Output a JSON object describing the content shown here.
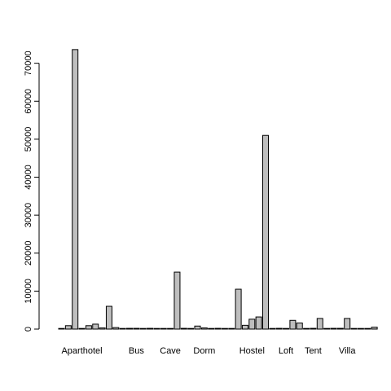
{
  "chart_data": {
    "type": "bar",
    "title": "",
    "xlabel": "",
    "ylabel": "",
    "ylim": [
      0,
      74000
    ],
    "yticks": [
      0,
      10000,
      20000,
      30000,
      40000,
      50000,
      60000,
      70000
    ],
    "ytick_labels": [
      "0",
      "10000",
      "20000",
      "30000",
      "40000",
      "50000",
      "60000",
      "70000"
    ],
    "grid": false,
    "legend": "none",
    "bar_fill": "#bebebe",
    "bar_stroke": "#000000",
    "x_labels": [
      {
        "text": "Aparthotel",
        "at_bar": 3
      },
      {
        "text": "Bus",
        "at_bar": 11
      },
      {
        "text": "Cave",
        "at_bar": 16
      },
      {
        "text": "Dorm",
        "at_bar": 21
      },
      {
        "text": "Hostel",
        "at_bar": 28
      },
      {
        "text": "Loft",
        "at_bar": 33
      },
      {
        "text": "Tent",
        "at_bar": 37
      },
      {
        "text": "Villa",
        "at_bar": 42
      }
    ],
    "values": [
      0,
      900,
      73600,
      100,
      900,
      1300,
      300,
      6000,
      400,
      0,
      200,
      200,
      50,
      200,
      50,
      0,
      0,
      15000,
      200,
      0,
      800,
      300,
      50,
      200,
      50,
      0,
      10500,
      1000,
      2600,
      3200,
      51000,
      0,
      200,
      100,
      2300,
      1600,
      0,
      200,
      2800,
      100,
      200,
      200,
      2800,
      0,
      0,
      50,
      500
    ]
  }
}
